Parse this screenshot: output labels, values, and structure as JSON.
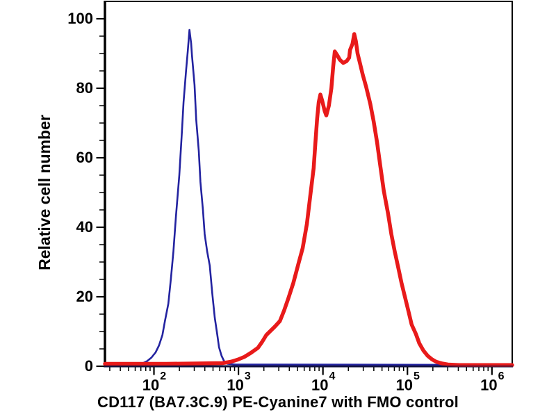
{
  "figure": {
    "background_color": "#ffffff",
    "frame_color": "#000000"
  },
  "chart_data": {
    "type": "line",
    "subtype": "flow-cytometry-histogram",
    "title": "",
    "xlabel": "CD117 (BA7.3C.9) PE-Cyanine7 with FMO control",
    "ylabel": "Relative cell number",
    "x_scale": "log10",
    "x_log_range": [
      1.42,
      6.24
    ],
    "x_major_tick_base": "10",
    "x_major_tick_exponents": [
      2,
      3,
      4,
      5,
      6
    ],
    "x_minor_ticks": "2-9 per decade",
    "ylim": [
      0,
      105
    ],
    "y_major_ticks": [
      0,
      20,
      40,
      60,
      80,
      100
    ],
    "y_minor_step": 5,
    "grid": "off",
    "legend": "none",
    "axis_bottom_color": "#14143c",
    "series": [
      {
        "name": "FMO control",
        "color": "#2323a0",
        "line_width": 2.6,
        "points_log10x_y": [
          [
            1.42,
            0.5
          ],
          [
            1.74,
            0.5
          ],
          [
            1.86,
            0.8
          ],
          [
            1.92,
            1.5
          ],
          [
            1.97,
            2.5
          ],
          [
            2.02,
            4
          ],
          [
            2.06,
            6
          ],
          [
            2.1,
            9
          ],
          [
            2.13,
            13
          ],
          [
            2.17,
            18
          ],
          [
            2.2,
            25
          ],
          [
            2.23,
            33
          ],
          [
            2.26,
            43
          ],
          [
            2.3,
            55
          ],
          [
            2.33,
            67
          ],
          [
            2.35,
            76
          ],
          [
            2.38,
            85
          ],
          [
            2.4,
            90.5
          ],
          [
            2.42,
            96.8
          ],
          [
            2.44,
            93
          ],
          [
            2.45,
            89.5
          ],
          [
            2.48,
            81
          ],
          [
            2.5,
            71
          ],
          [
            2.53,
            62
          ],
          [
            2.55,
            53
          ],
          [
            2.58,
            45
          ],
          [
            2.6,
            38
          ],
          [
            2.63,
            33
          ],
          [
            2.66,
            29
          ],
          [
            2.69,
            21
          ],
          [
            2.72,
            14
          ],
          [
            2.75,
            9
          ],
          [
            2.77,
            5.5
          ],
          [
            2.8,
            3
          ],
          [
            2.83,
            1.5
          ],
          [
            2.87,
            0.7
          ],
          [
            2.97,
            0.5
          ],
          [
            6.24,
            0.4
          ]
        ]
      },
      {
        "name": "CD117 (BA7.3C.9) PE-Cyanine7",
        "color": "#e81a1a",
        "line_width": 5.5,
        "points_log10x_y": [
          [
            1.42,
            0.7
          ],
          [
            2.15,
            0.7
          ],
          [
            2.81,
            0.9
          ],
          [
            2.91,
            1.3
          ],
          [
            2.99,
            1.9
          ],
          [
            3.07,
            2.7
          ],
          [
            3.15,
            3.9
          ],
          [
            3.23,
            5.3
          ],
          [
            3.28,
            7
          ],
          [
            3.33,
            9
          ],
          [
            3.38,
            10.2
          ],
          [
            3.43,
            11.4
          ],
          [
            3.49,
            13
          ],
          [
            3.54,
            16
          ],
          [
            3.59,
            19.5
          ],
          [
            3.65,
            24
          ],
          [
            3.71,
            29.5
          ],
          [
            3.76,
            34
          ],
          [
            3.81,
            41
          ],
          [
            3.85,
            49
          ],
          [
            3.89,
            57
          ],
          [
            3.91,
            64
          ],
          [
            3.93,
            71
          ],
          [
            3.95,
            76
          ],
          [
            3.97,
            78.2
          ],
          [
            3.99,
            76.5
          ],
          [
            4.02,
            73.5
          ],
          [
            4.04,
            72.2
          ],
          [
            4.07,
            75
          ],
          [
            4.1,
            80
          ],
          [
            4.12,
            86
          ],
          [
            4.14,
            90.6
          ],
          [
            4.17,
            89.5
          ],
          [
            4.2,
            88.2
          ],
          [
            4.24,
            87.3
          ],
          [
            4.28,
            87.8
          ],
          [
            4.31,
            88.8
          ],
          [
            4.32,
            91
          ],
          [
            4.35,
            92.8
          ],
          [
            4.37,
            95.6
          ],
          [
            4.39,
            93.5
          ],
          [
            4.41,
            90
          ],
          [
            4.44,
            87
          ],
          [
            4.47,
            84
          ],
          [
            4.51,
            80.5
          ],
          [
            4.56,
            75.5
          ],
          [
            4.6,
            70.5
          ],
          [
            4.64,
            64.5
          ],
          [
            4.68,
            57.5
          ],
          [
            4.72,
            50.5
          ],
          [
            4.77,
            44
          ],
          [
            4.81,
            38
          ],
          [
            4.85,
            33
          ],
          [
            4.89,
            28.5
          ],
          [
            4.93,
            24
          ],
          [
            4.97,
            20
          ],
          [
            5.01,
            16
          ],
          [
            5.05,
            12
          ],
          [
            5.1,
            9.3
          ],
          [
            5.14,
            6.6
          ],
          [
            5.19,
            4.5
          ],
          [
            5.24,
            3
          ],
          [
            5.29,
            2
          ],
          [
            5.34,
            1.3
          ],
          [
            5.41,
            0.8
          ],
          [
            5.48,
            0.5
          ],
          [
            5.61,
            0.35
          ],
          [
            6.24,
            0.35
          ]
        ]
      }
    ]
  }
}
